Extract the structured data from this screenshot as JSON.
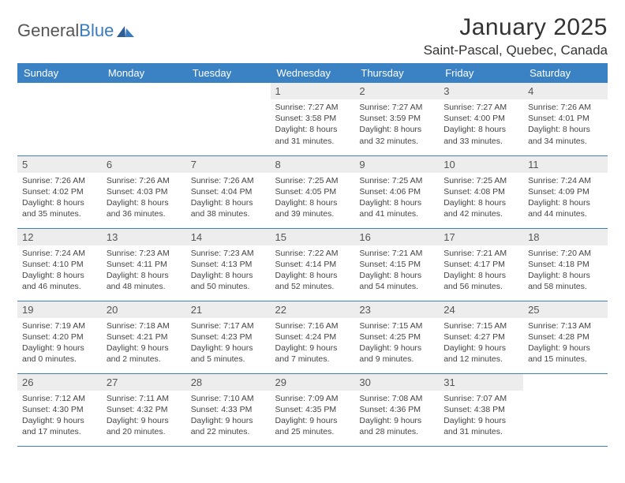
{
  "brand": {
    "name_a": "General",
    "name_b": "Blue"
  },
  "title": {
    "month": "January 2025",
    "location": "Saint-Pascal, Quebec, Canada"
  },
  "colors": {
    "header_bg": "#3b82c4",
    "header_text": "#ffffff",
    "daynum_bg": "#ededed",
    "row_border": "#3b82c4",
    "body_text": "#444444",
    "page_bg": "#ffffff",
    "logo_blue": "#3a7bbf",
    "logo_gray": "#555555"
  },
  "calendar": {
    "type": "table",
    "columns": [
      "Sunday",
      "Monday",
      "Tuesday",
      "Wednesday",
      "Thursday",
      "Friday",
      "Saturday"
    ],
    "cell_fontsize_pt": 10.5,
    "header_fontsize_pt": 13,
    "weeks": [
      [
        {
          "n": "",
          "sr": "",
          "ss": "",
          "dl": ""
        },
        {
          "n": "",
          "sr": "",
          "ss": "",
          "dl": ""
        },
        {
          "n": "",
          "sr": "",
          "ss": "",
          "dl": ""
        },
        {
          "n": "1",
          "sr": "7:27 AM",
          "ss": "3:58 PM",
          "dl": "8 hours and 31 minutes."
        },
        {
          "n": "2",
          "sr": "7:27 AM",
          "ss": "3:59 PM",
          "dl": "8 hours and 32 minutes."
        },
        {
          "n": "3",
          "sr": "7:27 AM",
          "ss": "4:00 PM",
          "dl": "8 hours and 33 minutes."
        },
        {
          "n": "4",
          "sr": "7:26 AM",
          "ss": "4:01 PM",
          "dl": "8 hours and 34 minutes."
        }
      ],
      [
        {
          "n": "5",
          "sr": "7:26 AM",
          "ss": "4:02 PM",
          "dl": "8 hours and 35 minutes."
        },
        {
          "n": "6",
          "sr": "7:26 AM",
          "ss": "4:03 PM",
          "dl": "8 hours and 36 minutes."
        },
        {
          "n": "7",
          "sr": "7:26 AM",
          "ss": "4:04 PM",
          "dl": "8 hours and 38 minutes."
        },
        {
          "n": "8",
          "sr": "7:25 AM",
          "ss": "4:05 PM",
          "dl": "8 hours and 39 minutes."
        },
        {
          "n": "9",
          "sr": "7:25 AM",
          "ss": "4:06 PM",
          "dl": "8 hours and 41 minutes."
        },
        {
          "n": "10",
          "sr": "7:25 AM",
          "ss": "4:08 PM",
          "dl": "8 hours and 42 minutes."
        },
        {
          "n": "11",
          "sr": "7:24 AM",
          "ss": "4:09 PM",
          "dl": "8 hours and 44 minutes."
        }
      ],
      [
        {
          "n": "12",
          "sr": "7:24 AM",
          "ss": "4:10 PM",
          "dl": "8 hours and 46 minutes."
        },
        {
          "n": "13",
          "sr": "7:23 AM",
          "ss": "4:11 PM",
          "dl": "8 hours and 48 minutes."
        },
        {
          "n": "14",
          "sr": "7:23 AM",
          "ss": "4:13 PM",
          "dl": "8 hours and 50 minutes."
        },
        {
          "n": "15",
          "sr": "7:22 AM",
          "ss": "4:14 PM",
          "dl": "8 hours and 52 minutes."
        },
        {
          "n": "16",
          "sr": "7:21 AM",
          "ss": "4:15 PM",
          "dl": "8 hours and 54 minutes."
        },
        {
          "n": "17",
          "sr": "7:21 AM",
          "ss": "4:17 PM",
          "dl": "8 hours and 56 minutes."
        },
        {
          "n": "18",
          "sr": "7:20 AM",
          "ss": "4:18 PM",
          "dl": "8 hours and 58 minutes."
        }
      ],
      [
        {
          "n": "19",
          "sr": "7:19 AM",
          "ss": "4:20 PM",
          "dl": "9 hours and 0 minutes."
        },
        {
          "n": "20",
          "sr": "7:18 AM",
          "ss": "4:21 PM",
          "dl": "9 hours and 2 minutes."
        },
        {
          "n": "21",
          "sr": "7:17 AM",
          "ss": "4:23 PM",
          "dl": "9 hours and 5 minutes."
        },
        {
          "n": "22",
          "sr": "7:16 AM",
          "ss": "4:24 PM",
          "dl": "9 hours and 7 minutes."
        },
        {
          "n": "23",
          "sr": "7:15 AM",
          "ss": "4:25 PM",
          "dl": "9 hours and 9 minutes."
        },
        {
          "n": "24",
          "sr": "7:15 AM",
          "ss": "4:27 PM",
          "dl": "9 hours and 12 minutes."
        },
        {
          "n": "25",
          "sr": "7:13 AM",
          "ss": "4:28 PM",
          "dl": "9 hours and 15 minutes."
        }
      ],
      [
        {
          "n": "26",
          "sr": "7:12 AM",
          "ss": "4:30 PM",
          "dl": "9 hours and 17 minutes."
        },
        {
          "n": "27",
          "sr": "7:11 AM",
          "ss": "4:32 PM",
          "dl": "9 hours and 20 minutes."
        },
        {
          "n": "28",
          "sr": "7:10 AM",
          "ss": "4:33 PM",
          "dl": "9 hours and 22 minutes."
        },
        {
          "n": "29",
          "sr": "7:09 AM",
          "ss": "4:35 PM",
          "dl": "9 hours and 25 minutes."
        },
        {
          "n": "30",
          "sr": "7:08 AM",
          "ss": "4:36 PM",
          "dl": "9 hours and 28 minutes."
        },
        {
          "n": "31",
          "sr": "7:07 AM",
          "ss": "4:38 PM",
          "dl": "9 hours and 31 minutes."
        },
        {
          "n": "",
          "sr": "",
          "ss": "",
          "dl": ""
        }
      ]
    ],
    "labels": {
      "sunrise": "Sunrise:",
      "sunset": "Sunset:",
      "daylight": "Daylight:"
    }
  }
}
